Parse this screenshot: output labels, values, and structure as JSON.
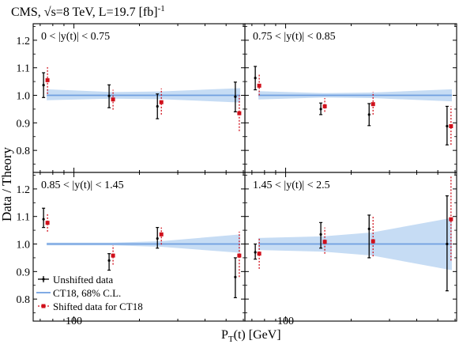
{
  "chart_data": {
    "type": "scatter",
    "header_text": "CMS, √s=8 TeV, L=19.7 [fb]⁻¹",
    "header_main": "CMS, √s=8 TeV, L=19.7 [fb]",
    "header_sup": "-1",
    "ylabel": "Data / Theory",
    "xlabel_main": "P",
    "xlabel_sub": "T",
    "xlabel_rest": "(t)  [GeV]",
    "x_scale": "log",
    "x_tick_label": "100",
    "xlim": [
      65,
      610
    ],
    "ylim": [
      0.72,
      1.26
    ],
    "y_ticks": [
      "0.8",
      "0.9",
      "1.0",
      "1.1",
      "1.2"
    ],
    "legend": {
      "placement": "bottom-left of lower-left panel",
      "entries": [
        "Unshifted data",
        "CT18, 68% C.L.",
        "Shifted data for CT18"
      ]
    },
    "colors": {
      "unshifted": "#000000",
      "band_fill": "#c6dcf4",
      "band_line": "#6f9fe0",
      "shifted": "#d0101b"
    },
    "panels": [
      {
        "label": "0 < |y(t)| < 0.75",
        "band": [
          [
            75,
            0.982,
            1.022
          ],
          [
            150,
            0.988,
            1.012
          ],
          [
            250,
            0.986,
            1.014
          ],
          [
            580,
            0.974,
            1.026
          ]
        ],
        "points": [
          {
            "x": 75,
            "unshifted": 1.037,
            "unshifted_err": [
              0.992,
              1.082
            ],
            "shifted": 1.055,
            "shifted_err": [
              1.005,
              1.102
            ]
          },
          {
            "x": 150,
            "unshifted": 0.998,
            "unshifted_err": [
              0.955,
              1.038
            ],
            "shifted": 0.985,
            "shifted_err": [
              0.948,
              1.02
            ]
          },
          {
            "x": 250,
            "unshifted": 0.96,
            "unshifted_err": [
              0.915,
              1.005
            ],
            "shifted": 0.975,
            "shifted_err": [
              0.93,
              1.025
            ]
          },
          {
            "x": 570,
            "unshifted": 0.995,
            "unshifted_err": [
              0.94,
              1.048
            ],
            "shifted": 0.935,
            "shifted_err": [
              0.87,
              1.0
            ]
          }
        ]
      },
      {
        "label": "0.75 < |y(t)| < 0.85",
        "band": [
          [
            75,
            0.985,
            1.015
          ],
          [
            150,
            0.992,
            1.008
          ],
          [
            250,
            0.99,
            1.01
          ],
          [
            580,
            0.978,
            1.022
          ]
        ],
        "points": [
          {
            "x": 75,
            "unshifted": 1.063,
            "unshifted_err": [
              1.02,
              1.105
            ],
            "shifted": 1.035,
            "shifted_err": [
              1.0,
              1.075
            ]
          },
          {
            "x": 150,
            "unshifted": 0.95,
            "unshifted_err": [
              0.93,
              0.972
            ],
            "shifted": 0.96,
            "shifted_err": [
              0.94,
              0.99
            ]
          },
          {
            "x": 250,
            "unshifted": 0.93,
            "unshifted_err": [
              0.89,
              0.97
            ],
            "shifted": 0.968,
            "shifted_err": [
              0.93,
              1.012
            ]
          },
          {
            "x": 570,
            "unshifted": 0.888,
            "unshifted_err": [
              0.82,
              0.96
            ],
            "shifted": 0.888,
            "shifted_err": [
              0.82,
              0.96
            ]
          }
        ]
      },
      {
        "label": "0.85 < |y(t)| < 1.45",
        "band": [
          [
            75,
            0.995,
            1.005
          ],
          [
            150,
            0.995,
            1.005
          ],
          [
            250,
            0.99,
            1.01
          ],
          [
            580,
            0.968,
            1.035
          ]
        ],
        "points": [
          {
            "x": 75,
            "unshifted": 1.09,
            "unshifted_err": [
              1.06,
              1.13
            ],
            "shifted": 1.077,
            "shifted_err": [
              1.045,
              1.11
            ]
          },
          {
            "x": 150,
            "unshifted": 0.94,
            "unshifted_err": [
              0.905,
              0.965
            ],
            "shifted": 0.958,
            "shifted_err": [
              0.925,
              0.995
            ]
          },
          {
            "x": 250,
            "unshifted": 1.02,
            "unshifted_err": [
              0.985,
              1.06
            ],
            "shifted": 1.035,
            "shifted_err": [
              0.998,
              1.06
            ]
          },
          {
            "x": 570,
            "unshifted": 0.88,
            "unshifted_err": [
              0.805,
              0.95
            ],
            "shifted": 0.958,
            "shifted_err": [
              0.88,
              1.045
            ]
          }
        ]
      },
      {
        "label": "1.45 < |y(t)| < 2.5",
        "band": [
          [
            75,
            0.978,
            1.022
          ],
          [
            150,
            0.972,
            1.028
          ],
          [
            250,
            0.958,
            1.042
          ],
          [
            580,
            0.905,
            1.095
          ]
        ],
        "points": [
          {
            "x": 75,
            "unshifted": 0.97,
            "unshifted_err": [
              0.945,
              1.0
            ],
            "shifted": 0.965,
            "shifted_err": [
              0.91,
              1.02
            ]
          },
          {
            "x": 150,
            "unshifted": 1.035,
            "unshifted_err": [
              0.985,
              1.078
            ],
            "shifted": 1.008,
            "shifted_err": [
              0.965,
              1.06
            ]
          },
          {
            "x": 250,
            "unshifted": 1.055,
            "unshifted_err": [
              0.95,
              1.105
            ],
            "shifted": 1.01,
            "shifted_err": [
              0.955,
              1.1
            ]
          },
          {
            "x": 570,
            "unshifted": 1.0,
            "unshifted_err": [
              0.83,
              1.175
            ],
            "shifted": 1.09,
            "shifted_err": [
              0.94,
              1.25
            ]
          }
        ]
      }
    ]
  }
}
